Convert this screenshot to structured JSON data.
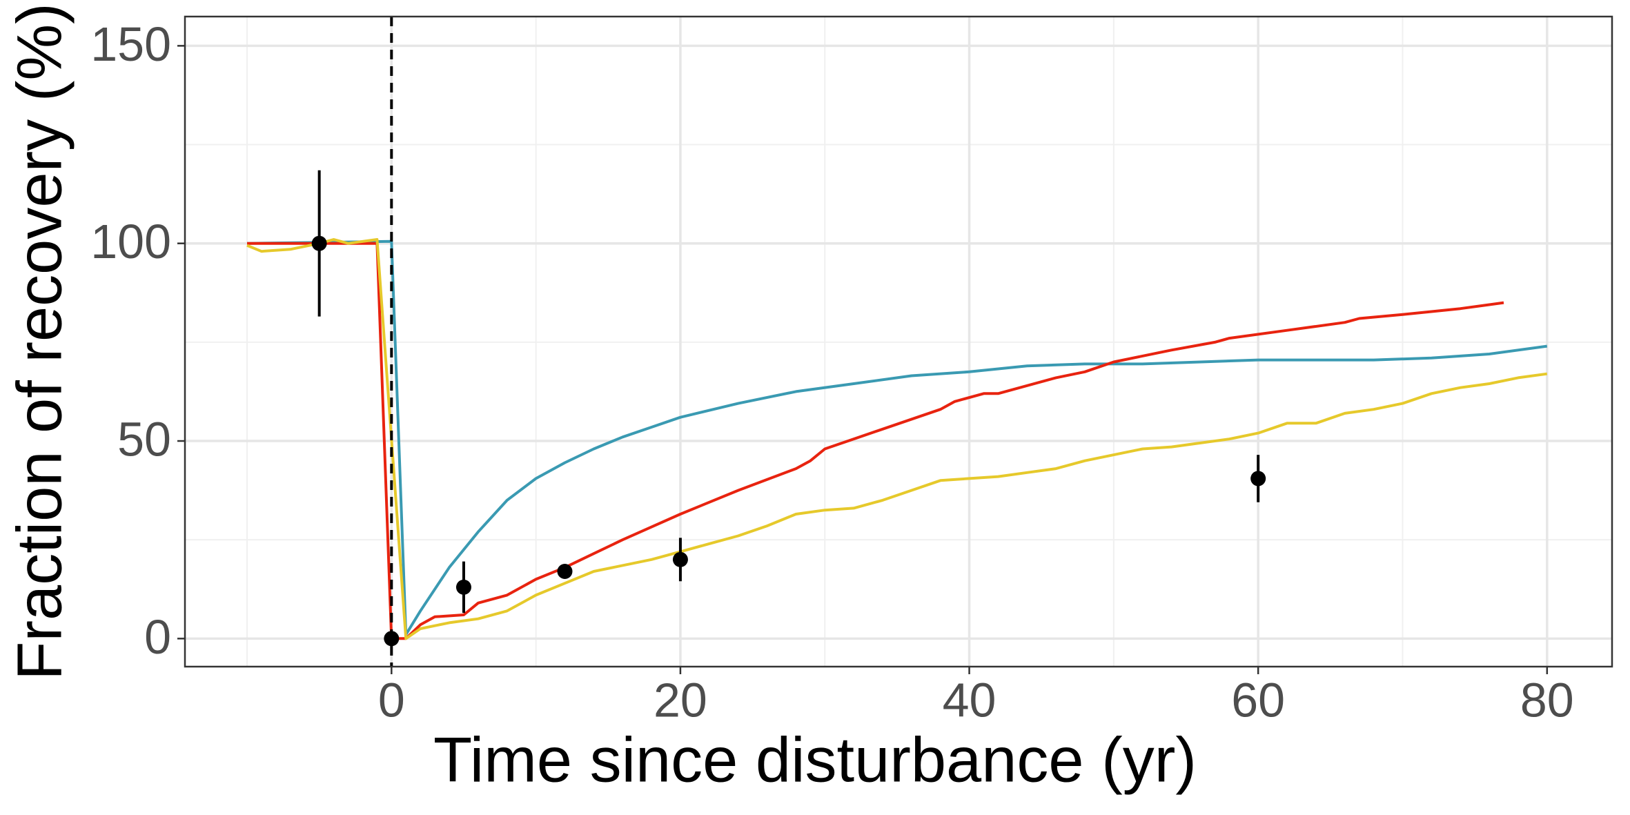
{
  "chart_data": {
    "type": "line",
    "xlabel": "Time since disturbance (yr)",
    "ylabel": "Fraction of recovery (%)",
    "xlim": [
      -14.3,
      84.5
    ],
    "ylim": [
      -7.1,
      157.4
    ],
    "xticks": [
      0,
      20,
      40,
      60,
      80
    ],
    "yticks": [
      0,
      50,
      100,
      150
    ],
    "x_minor_grid": [
      -10,
      10,
      30,
      50,
      70
    ],
    "y_minor_grid": [
      25,
      75,
      125
    ],
    "grid": true,
    "vline": 0,
    "series": [
      {
        "color": "#3a9ab2",
        "x": [
          -10,
          0,
          1,
          2,
          4,
          6,
          8,
          10,
          12,
          14,
          16,
          18,
          20,
          24,
          28,
          32,
          36,
          40,
          44,
          48,
          52,
          56,
          60,
          64,
          68,
          72,
          76,
          80
        ],
        "values": [
          100,
          100.5,
          1,
          7,
          18,
          27,
          35,
          40.5,
          44.5,
          48,
          51,
          53.5,
          56,
          59.5,
          62.5,
          64.5,
          66.5,
          67.5,
          69,
          69.5,
          69.5,
          70,
          70.5,
          70.5,
          70.5,
          71,
          72,
          74
        ]
      },
      {
        "color": "#e8230f",
        "x": [
          -10,
          -1,
          0,
          1,
          2,
          3,
          5,
          6,
          8,
          10,
          12,
          14,
          16,
          20,
          24,
          28,
          29,
          30,
          34,
          38,
          39,
          41,
          42,
          46,
          48,
          50,
          54,
          57,
          58,
          62,
          66,
          67,
          70,
          74,
          76,
          77
        ],
        "values": [
          100,
          100,
          0,
          0,
          3.5,
          5.5,
          6,
          9,
          11,
          15,
          18,
          21.5,
          25,
          31.5,
          37.5,
          43,
          45,
          48,
          53,
          58,
          60,
          62,
          62,
          66,
          67.5,
          70,
          73,
          75,
          76,
          78,
          80,
          81,
          82,
          83.5,
          84.5,
          85
        ]
      },
      {
        "color": "#e6c92b",
        "x": [
          -10,
          -9,
          -7,
          -5,
          -4,
          -3,
          -1,
          1,
          2,
          4,
          6,
          8,
          10,
          12,
          14,
          18,
          20,
          22,
          24,
          26,
          28,
          30,
          32,
          34,
          36,
          38,
          40,
          42,
          44,
          46,
          48,
          50,
          52,
          54,
          56,
          58,
          60,
          62,
          64,
          66,
          68,
          70,
          72,
          74,
          76,
          78,
          80
        ],
        "values": [
          99.5,
          98,
          98.5,
          100,
          101,
          100,
          101,
          0,
          2.5,
          4,
          5,
          7,
          11,
          14,
          17,
          20,
          22,
          24,
          26,
          28.5,
          31.5,
          32.5,
          33,
          35,
          37.5,
          40,
          40.5,
          41,
          42,
          43,
          45,
          46.5,
          48,
          48.5,
          49.5,
          50.5,
          52,
          54.5,
          54.5,
          57,
          58,
          59.5,
          62,
          63.5,
          64.5,
          66,
          67
        ]
      }
    ],
    "points": {
      "color": "#000000",
      "x": [
        -5,
        0,
        5,
        12,
        20,
        60
      ],
      "values": [
        100,
        0,
        13,
        17,
        20,
        40.5
      ],
      "error": [
        18.5,
        0,
        6.5,
        0,
        5.5,
        6
      ]
    }
  }
}
